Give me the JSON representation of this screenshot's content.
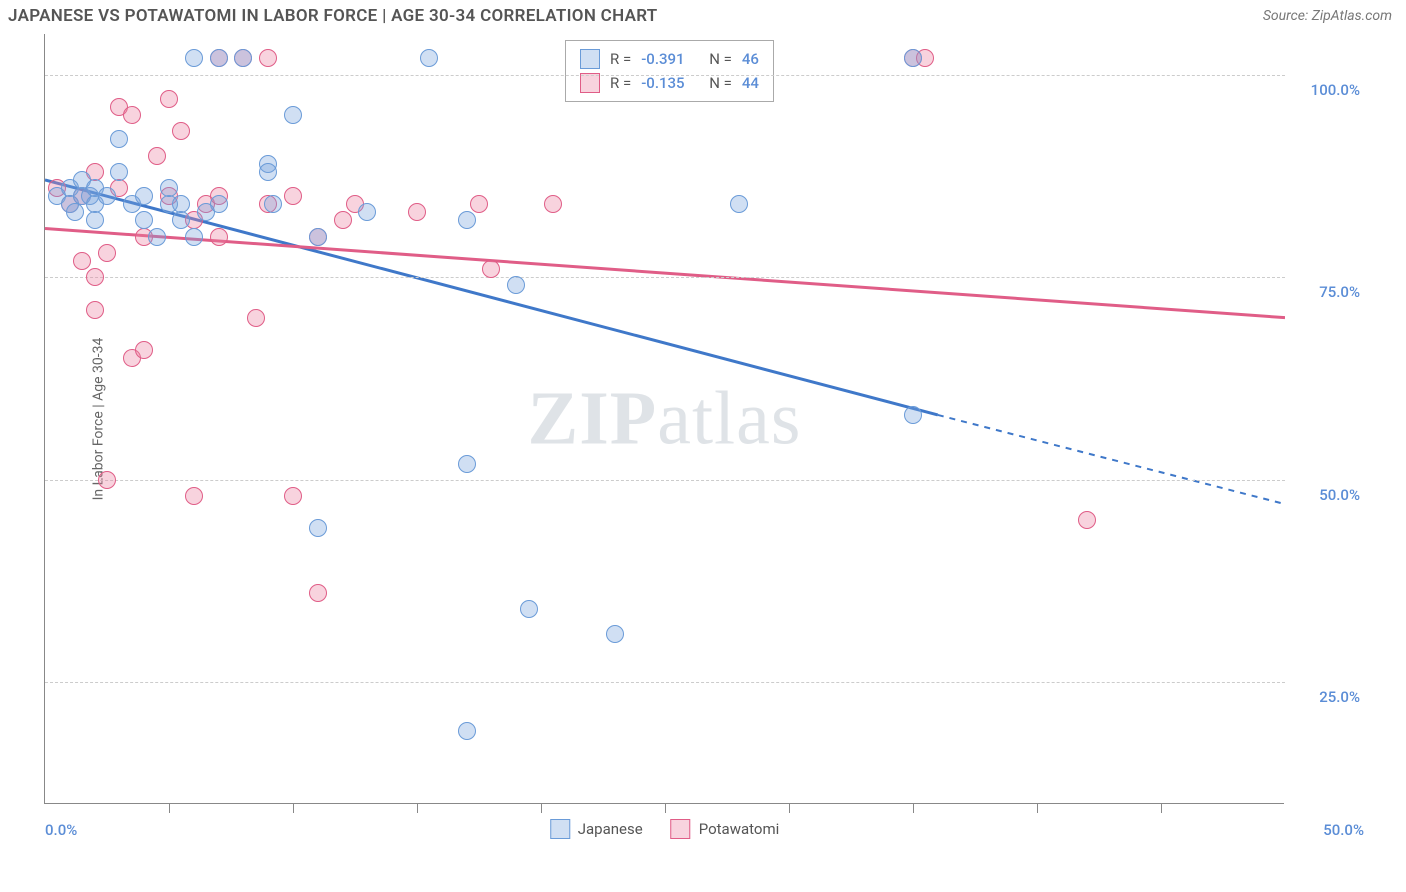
{
  "header": {
    "title": "JAPANESE VS POTAWATOMI IN LABOR FORCE | AGE 30-34 CORRELATION CHART",
    "source": "Source: ZipAtlas.com"
  },
  "chart": {
    "type": "scatter",
    "y_axis_label": "In Labor Force | Age 30-34",
    "xlim": [
      0,
      50
    ],
    "ylim": [
      10,
      105
    ],
    "x_ticks": [
      5,
      10,
      15,
      20,
      25,
      30,
      35,
      40,
      45
    ],
    "x_start_label": "0.0%",
    "x_end_label": "50.0%",
    "y_ticks": [
      {
        "v": 25,
        "label": "25.0%"
      },
      {
        "v": 50,
        "label": "50.0%"
      },
      {
        "v": 75,
        "label": "75.0%"
      },
      {
        "v": 100,
        "label": "100.0%"
      }
    ],
    "grid_color": "#cccccc",
    "background_color": "#ffffff",
    "marker_radius": 9,
    "marker_border_width": 1.5,
    "series": [
      {
        "name": "Japanese",
        "fill": "rgba(119,162,220,0.35)",
        "stroke": "#6a9bd8",
        "line_color": "#3f78c9",
        "R": "-0.391",
        "N": "46",
        "trend": {
          "x1": 0,
          "y1": 87,
          "x2": 36,
          "y2": 58,
          "dash_x2": 50,
          "dash_y2": 47
        },
        "points": [
          [
            0.5,
            85
          ],
          [
            1,
            86
          ],
          [
            1,
            84
          ],
          [
            1.2,
            83
          ],
          [
            1.5,
            85
          ],
          [
            1.5,
            87
          ],
          [
            1.8,
            85
          ],
          [
            2,
            84
          ],
          [
            2,
            86
          ],
          [
            2,
            82
          ],
          [
            2.5,
            85
          ],
          [
            3,
            92
          ],
          [
            3,
            88
          ],
          [
            3.5,
            84
          ],
          [
            4,
            82
          ],
          [
            4,
            85
          ],
          [
            4.5,
            80
          ],
          [
            5,
            84
          ],
          [
            5,
            86
          ],
          [
            5.5,
            82
          ],
          [
            5.5,
            84
          ],
          [
            6,
            80
          ],
          [
            6,
            102
          ],
          [
            6.5,
            83
          ],
          [
            7,
            84
          ],
          [
            7,
            102
          ],
          [
            8,
            102
          ],
          [
            9,
            89
          ],
          [
            9,
            88
          ],
          [
            9.2,
            84
          ],
          [
            10,
            95
          ],
          [
            11,
            80
          ],
          [
            11,
            44
          ],
          [
            13,
            83
          ],
          [
            15.5,
            102
          ],
          [
            17,
            82
          ],
          [
            17,
            52
          ],
          [
            19,
            74
          ],
          [
            19.5,
            34
          ],
          [
            17,
            19
          ],
          [
            23,
            31
          ],
          [
            28,
            84
          ],
          [
            35,
            102
          ],
          [
            35,
            58
          ]
        ]
      },
      {
        "name": "Potawatomi",
        "fill": "rgba(236,128,161,0.35)",
        "stroke": "#e05d87",
        "line_color": "#e05d87",
        "R": "-0.135",
        "N": "44",
        "trend": {
          "x1": 0,
          "y1": 81,
          "x2": 50,
          "y2": 70
        },
        "points": [
          [
            0.5,
            86
          ],
          [
            1,
            84
          ],
          [
            1.5,
            77
          ],
          [
            1.5,
            85
          ],
          [
            2,
            71
          ],
          [
            2,
            88
          ],
          [
            2,
            75
          ],
          [
            2.5,
            78
          ],
          [
            2.5,
            50
          ],
          [
            3,
            96
          ],
          [
            3,
            86
          ],
          [
            3.5,
            95
          ],
          [
            3.5,
            65
          ],
          [
            4,
            66
          ],
          [
            4,
            80
          ],
          [
            4.5,
            90
          ],
          [
            5,
            97
          ],
          [
            5,
            85
          ],
          [
            5.5,
            93
          ],
          [
            6,
            48
          ],
          [
            6,
            82
          ],
          [
            6.5,
            84
          ],
          [
            7,
            85
          ],
          [
            7,
            102
          ],
          [
            7,
            80
          ],
          [
            8,
            102
          ],
          [
            8.5,
            70
          ],
          [
            9,
            102
          ],
          [
            9,
            84
          ],
          [
            10,
            85
          ],
          [
            10,
            48
          ],
          [
            11,
            36
          ],
          [
            11,
            80
          ],
          [
            12,
            82
          ],
          [
            12.5,
            84
          ],
          [
            15,
            83
          ],
          [
            17.5,
            84
          ],
          [
            18,
            76
          ],
          [
            20.5,
            84
          ],
          [
            35,
            102
          ],
          [
            35.5,
            102
          ],
          [
            42,
            45
          ]
        ]
      }
    ],
    "legend_bottom": [
      "Japanese",
      "Potawatomi"
    ],
    "watermark": {
      "bold": "ZIP",
      "rest": "atlas"
    }
  }
}
